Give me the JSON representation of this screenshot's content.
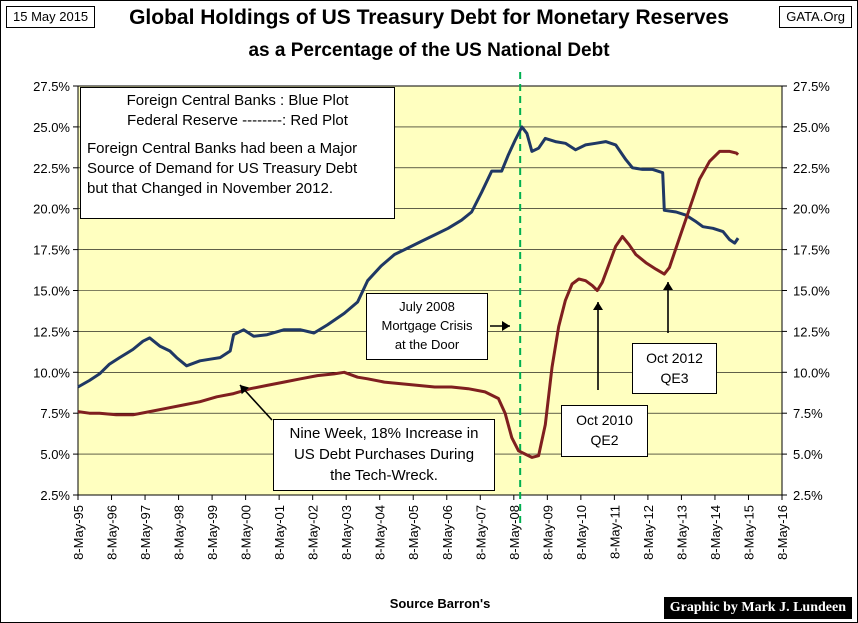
{
  "header": {
    "date": "15 May 2015",
    "site": "GATA.Org",
    "title_line1": "Global Holdings of US Treasury Debt for Monetary Reserves",
    "title_line2": "as a Percentage of the US National Debt"
  },
  "footer": {
    "source": "Source Barron's",
    "credit": "Graphic by Mark J. Lundeen"
  },
  "annotations": {
    "legend_line1": "Foreign Central Banks : Blue Plot",
    "legend_line2": "Federal Reserve --------: Red Plot",
    "legend_text1": "Foreign Central Banks had been a Major",
    "legend_text2": "Source of Demand for US Treasury Debt",
    "legend_text3": "but that Changed in November 2012.",
    "mortgage_line1": "July 2008",
    "mortgage_line2": "Mortgage Crisis",
    "mortgage_line3": "at the Door",
    "nineweek_line1": "Nine Week, 18% Increase in",
    "nineweek_line2": "US Debt Purchases During",
    "nineweek_line3": "the Tech-Wreck.",
    "qe2_line1": "Oct 2010",
    "qe2_line2": "QE2",
    "qe3_line1": "Oct 2012",
    "qe3_line2": "QE3"
  },
  "colors": {
    "plot_background": "#FFFFC0",
    "foreign_series": "#1F3864",
    "fed_series": "#7F1F1F",
    "marker_line": "#00B050"
  },
  "chart_data": {
    "type": "line",
    "xlim": [
      1995.36,
      2016.36
    ],
    "ylim": [
      2.5,
      27.5
    ],
    "y_ticks": [
      2.5,
      5.0,
      7.5,
      10.0,
      12.5,
      15.0,
      17.5,
      20.0,
      22.5,
      25.0,
      27.5
    ],
    "y_tick_labels": [
      "2.5%",
      "5.0%",
      "7.5%",
      "10.0%",
      "12.5%",
      "15.0%",
      "17.5%",
      "20.0%",
      "22.5%",
      "25.0%",
      "27.5%"
    ],
    "x_tick_labels": [
      "8-May-95",
      "8-May-96",
      "8-May-97",
      "8-May-98",
      "8-May-99",
      "8-May-00",
      "8-May-01",
      "8-May-02",
      "8-May-03",
      "8-May-04",
      "8-May-05",
      "8-May-06",
      "8-May-07",
      "8-May-08",
      "8-May-09",
      "8-May-10",
      "8-May-11",
      "8-May-12",
      "8-May-13",
      "8-May-14",
      "8-May-15",
      "8-May-16"
    ],
    "marker_x": 2008.55,
    "series": [
      {
        "name": "Foreign Central Banks",
        "points": [
          [
            1995.36,
            9.1
          ],
          [
            1995.7,
            9.5
          ],
          [
            1996.0,
            9.9
          ],
          [
            1996.3,
            10.5
          ],
          [
            1996.6,
            10.9
          ],
          [
            1997.0,
            11.4
          ],
          [
            1997.3,
            11.9
          ],
          [
            1997.5,
            12.1
          ],
          [
            1997.8,
            11.6
          ],
          [
            1998.1,
            11.3
          ],
          [
            1998.3,
            10.9
          ],
          [
            1998.6,
            10.4
          ],
          [
            1999.0,
            10.7
          ],
          [
            1999.3,
            10.8
          ],
          [
            1999.6,
            10.9
          ],
          [
            1999.9,
            11.3
          ],
          [
            2000.0,
            12.3
          ],
          [
            2000.3,
            12.6
          ],
          [
            2000.6,
            12.2
          ],
          [
            2001.0,
            12.3
          ],
          [
            2001.5,
            12.6
          ],
          [
            2002.0,
            12.6
          ],
          [
            2002.4,
            12.4
          ],
          [
            2002.8,
            12.9
          ],
          [
            2003.3,
            13.6
          ],
          [
            2003.7,
            14.3
          ],
          [
            2004.0,
            15.6
          ],
          [
            2004.4,
            16.5
          ],
          [
            2004.8,
            17.2
          ],
          [
            2005.2,
            17.6
          ],
          [
            2005.6,
            18.0
          ],
          [
            2006.0,
            18.4
          ],
          [
            2006.4,
            18.8
          ],
          [
            2006.8,
            19.3
          ],
          [
            2007.1,
            19.8
          ],
          [
            2007.4,
            21.0
          ],
          [
            2007.7,
            22.3
          ],
          [
            2008.0,
            22.3
          ],
          [
            2008.2,
            23.3
          ],
          [
            2008.4,
            24.2
          ],
          [
            2008.6,
            25.0
          ],
          [
            2008.75,
            24.6
          ],
          [
            2008.9,
            23.5
          ],
          [
            2009.1,
            23.7
          ],
          [
            2009.3,
            24.3
          ],
          [
            2009.6,
            24.1
          ],
          [
            2009.9,
            24.0
          ],
          [
            2010.2,
            23.6
          ],
          [
            2010.5,
            23.9
          ],
          [
            2010.8,
            24.0
          ],
          [
            2011.1,
            24.1
          ],
          [
            2011.4,
            23.9
          ],
          [
            2011.7,
            23.0
          ],
          [
            2011.9,
            22.5
          ],
          [
            2012.2,
            22.4
          ],
          [
            2012.5,
            22.4
          ],
          [
            2012.8,
            22.2
          ],
          [
            2012.85,
            19.9
          ],
          [
            2013.2,
            19.8
          ],
          [
            2013.5,
            19.6
          ],
          [
            2013.8,
            19.2
          ],
          [
            2014.0,
            18.9
          ],
          [
            2014.3,
            18.8
          ],
          [
            2014.6,
            18.6
          ],
          [
            2014.8,
            18.1
          ],
          [
            2014.95,
            17.9
          ],
          [
            2015.05,
            18.2
          ]
        ]
      },
      {
        "name": "Federal Reserve",
        "points": [
          [
            1995.36,
            7.6
          ],
          [
            1995.7,
            7.5
          ],
          [
            1996.0,
            7.5
          ],
          [
            1996.5,
            7.4
          ],
          [
            1997.0,
            7.4
          ],
          [
            1997.5,
            7.6
          ],
          [
            1998.0,
            7.8
          ],
          [
            1998.5,
            8.0
          ],
          [
            1999.0,
            8.2
          ],
          [
            1999.5,
            8.5
          ],
          [
            2000.0,
            8.7
          ],
          [
            2000.5,
            9.0
          ],
          [
            2001.0,
            9.2
          ],
          [
            2001.5,
            9.4
          ],
          [
            2002.0,
            9.6
          ],
          [
            2002.5,
            9.8
          ],
          [
            2003.0,
            9.9
          ],
          [
            2003.3,
            10.0
          ],
          [
            2003.7,
            9.7
          ],
          [
            2004.0,
            9.6
          ],
          [
            2004.5,
            9.4
          ],
          [
            2005.0,
            9.3
          ],
          [
            2005.5,
            9.2
          ],
          [
            2006.0,
            9.1
          ],
          [
            2006.5,
            9.1
          ],
          [
            2007.0,
            9.0
          ],
          [
            2007.5,
            8.8
          ],
          [
            2007.9,
            8.4
          ],
          [
            2008.1,
            7.5
          ],
          [
            2008.3,
            6.0
          ],
          [
            2008.5,
            5.2
          ],
          [
            2008.7,
            5.0
          ],
          [
            2008.9,
            4.8
          ],
          [
            2009.1,
            4.9
          ],
          [
            2009.3,
            6.8
          ],
          [
            2009.5,
            10.3
          ],
          [
            2009.7,
            12.8
          ],
          [
            2009.9,
            14.4
          ],
          [
            2010.1,
            15.4
          ],
          [
            2010.3,
            15.7
          ],
          [
            2010.5,
            15.6
          ],
          [
            2010.7,
            15.3
          ],
          [
            2010.85,
            15.0
          ],
          [
            2011.0,
            15.5
          ],
          [
            2011.2,
            16.6
          ],
          [
            2011.4,
            17.7
          ],
          [
            2011.6,
            18.3
          ],
          [
            2011.8,
            17.8
          ],
          [
            2012.0,
            17.2
          ],
          [
            2012.3,
            16.7
          ],
          [
            2012.6,
            16.3
          ],
          [
            2012.85,
            16.0
          ],
          [
            2013.0,
            16.4
          ],
          [
            2013.3,
            18.2
          ],
          [
            2013.6,
            20.0
          ],
          [
            2013.9,
            21.8
          ],
          [
            2014.2,
            22.9
          ],
          [
            2014.5,
            23.5
          ],
          [
            2014.8,
            23.5
          ],
          [
            2015.0,
            23.4
          ],
          [
            2015.05,
            23.3
          ]
        ]
      }
    ]
  }
}
